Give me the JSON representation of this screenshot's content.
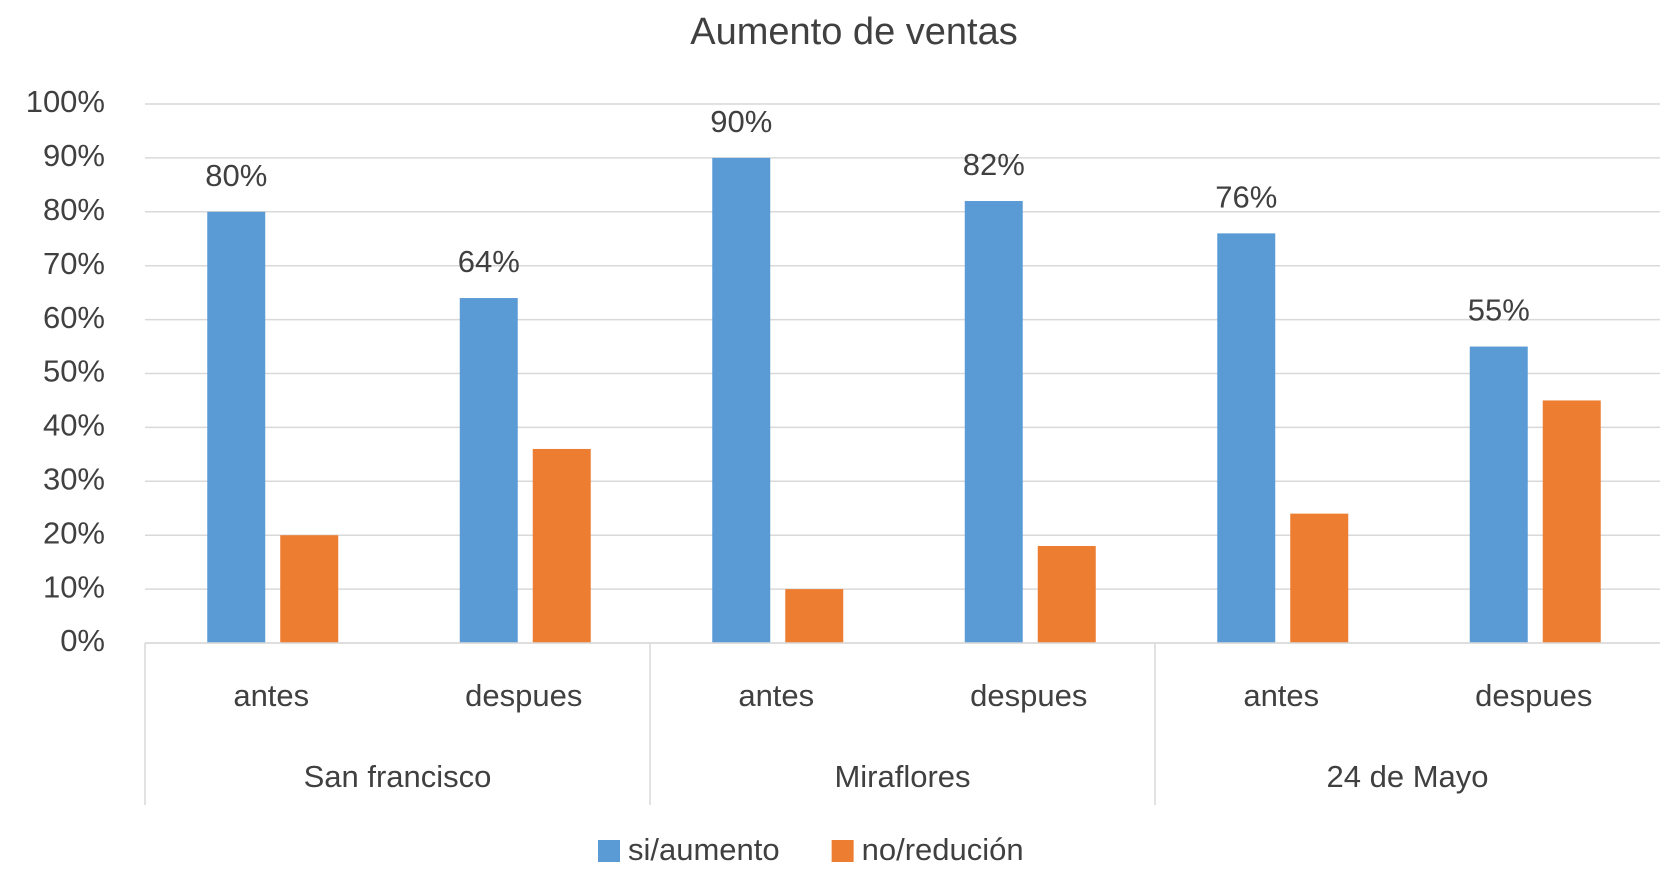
{
  "chart_data": {
    "type": "bar",
    "title": "Aumento de ventas",
    "categories": [
      "antes",
      "despues",
      "antes",
      "despues",
      "antes",
      "despues"
    ],
    "category_groups": [
      "San francisco",
      "Miraflores",
      "24 de Mayo"
    ],
    "series": [
      {
        "name": "si/aumento",
        "color": "#5b9bd5",
        "values": [
          80,
          64,
          90,
          82,
          76,
          55
        ],
        "value_labels": [
          "80%",
          "64%",
          "90%",
          "82%",
          "76%",
          "55%"
        ]
      },
      {
        "name": "no/redución",
        "color": "#ed7d31",
        "values": [
          20,
          36,
          10,
          18,
          24,
          45
        ]
      }
    ],
    "ylim": [
      0,
      100
    ],
    "yticks": [
      {
        "value": 0,
        "label": "0%"
      },
      {
        "value": 10,
        "label": "10%"
      },
      {
        "value": 20,
        "label": "20%"
      },
      {
        "value": 30,
        "label": "30%"
      },
      {
        "value": 40,
        "label": "40%"
      },
      {
        "value": 50,
        "label": "50%"
      },
      {
        "value": 60,
        "label": "60%"
      },
      {
        "value": 70,
        "label": "70%"
      },
      {
        "value": 80,
        "label": "80%"
      },
      {
        "value": 90,
        "label": "90%"
      },
      {
        "value": 100,
        "label": "100%"
      }
    ],
    "grid": true,
    "legend": "bottom"
  }
}
